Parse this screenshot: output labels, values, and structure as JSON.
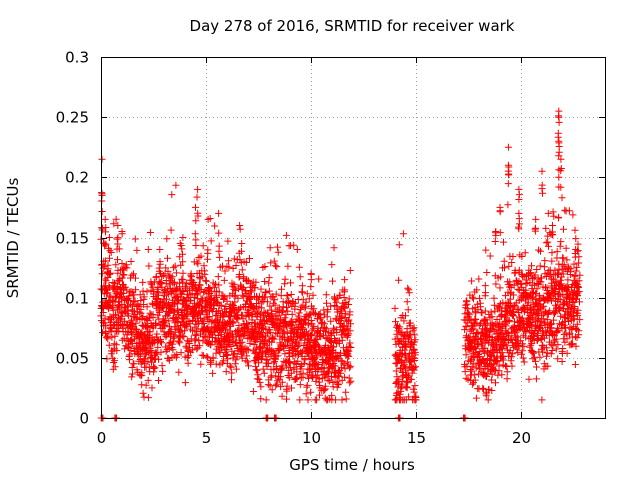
{
  "chart_data": {
    "type": "scatter",
    "title": "Day 278 of 2016, SRMTID for receiver wark",
    "xlabel": "GPS time / hours",
    "ylabel": "SRMTID / TECUs",
    "xlim": [
      0,
      24
    ],
    "ylim": [
      0,
      0.3
    ],
    "x_ticks": [
      0,
      5,
      10,
      15,
      20
    ],
    "y_ticks": [
      0,
      0.05,
      0.1,
      0.15,
      0.2,
      0.25,
      0.3
    ],
    "x_tick_labels": [
      "0",
      "5",
      "10",
      "15",
      "20"
    ],
    "y_tick_labels": [
      "0",
      "0.05",
      "0.1",
      "0.15",
      "0.2",
      "0.25",
      "0.3"
    ],
    "grid": true,
    "marker": "+",
    "color": "#ff0000",
    "zero_markers_x": [
      0.05,
      0.7,
      7.9,
      8.3,
      14.2,
      17.3
    ],
    "segments": [
      {
        "start": 0.0,
        "end": 11.9,
        "profile": [
          [
            0.0,
            0.1
          ],
          [
            0.5,
            0.09
          ],
          [
            1.0,
            0.1
          ],
          [
            1.5,
            0.075
          ],
          [
            2.0,
            0.065
          ],
          [
            2.5,
            0.07
          ],
          [
            3.0,
            0.085
          ],
          [
            3.5,
            0.09
          ],
          [
            4.0,
            0.085
          ],
          [
            4.5,
            0.095
          ],
          [
            5.0,
            0.085
          ],
          [
            5.5,
            0.08
          ],
          [
            6.0,
            0.075
          ],
          [
            6.5,
            0.085
          ],
          [
            7.0,
            0.09
          ],
          [
            7.5,
            0.065
          ],
          [
            8.0,
            0.07
          ],
          [
            8.5,
            0.065
          ],
          [
            9.0,
            0.07
          ],
          [
            9.5,
            0.065
          ],
          [
            10.0,
            0.06
          ],
          [
            10.5,
            0.055
          ],
          [
            11.0,
            0.055
          ],
          [
            11.5,
            0.06
          ],
          [
            11.9,
            0.06
          ]
        ]
      },
      {
        "start": 14.0,
        "end": 15.0,
        "profile": [
          [
            14.0,
            0.045
          ],
          [
            14.5,
            0.05
          ],
          [
            15.0,
            0.05
          ]
        ]
      },
      {
        "start": 17.3,
        "end": 22.8,
        "profile": [
          [
            17.3,
            0.07
          ],
          [
            18.0,
            0.06
          ],
          [
            18.5,
            0.055
          ],
          [
            19.0,
            0.07
          ],
          [
            19.5,
            0.085
          ],
          [
            20.0,
            0.095
          ],
          [
            20.5,
            0.085
          ],
          [
            21.0,
            0.08
          ],
          [
            21.5,
            0.095
          ],
          [
            22.0,
            0.1
          ],
          [
            22.5,
            0.095
          ],
          [
            22.8,
            0.1
          ]
        ]
      }
    ],
    "peaks": [
      {
        "x": 0.05,
        "y": 0.215
      },
      {
        "x": 0.05,
        "y": 0.185
      },
      {
        "x": 0.2,
        "y": 0.165
      },
      {
        "x": 0.4,
        "y": 0.15
      },
      {
        "x": 0.8,
        "y": 0.16
      },
      {
        "x": 1.0,
        "y": 0.155
      },
      {
        "x": 2.8,
        "y": 0.14
      },
      {
        "x": 3.9,
        "y": 0.15
      },
      {
        "x": 4.6,
        "y": 0.19
      },
      {
        "x": 4.5,
        "y": 0.175
      },
      {
        "x": 5.1,
        "y": 0.165
      },
      {
        "x": 5.6,
        "y": 0.17
      },
      {
        "x": 6.6,
        "y": 0.16
      },
      {
        "x": 6.7,
        "y": 0.145
      },
      {
        "x": 10.0,
        "y": 0.12
      },
      {
        "x": 11.6,
        "y": 0.115
      },
      {
        "x": 14.5,
        "y": 0.085
      },
      {
        "x": 18.3,
        "y": 0.11
      },
      {
        "x": 18.8,
        "y": 0.155
      },
      {
        "x": 19.0,
        "y": 0.175
      },
      {
        "x": 19.4,
        "y": 0.225
      },
      {
        "x": 19.4,
        "y": 0.21
      },
      {
        "x": 19.9,
        "y": 0.19
      },
      {
        "x": 19.9,
        "y": 0.17
      },
      {
        "x": 20.7,
        "y": 0.165
      },
      {
        "x": 21.0,
        "y": 0.205
      },
      {
        "x": 21.3,
        "y": 0.17
      },
      {
        "x": 21.5,
        "y": 0.16
      },
      {
        "x": 21.8,
        "y": 0.255
      },
      {
        "x": 21.8,
        "y": 0.25
      },
      {
        "x": 21.8,
        "y": 0.23
      },
      {
        "x": 21.9,
        "y": 0.215
      },
      {
        "x": 21.8,
        "y": 0.2
      },
      {
        "x": 22.6,
        "y": 0.14
      }
    ]
  }
}
